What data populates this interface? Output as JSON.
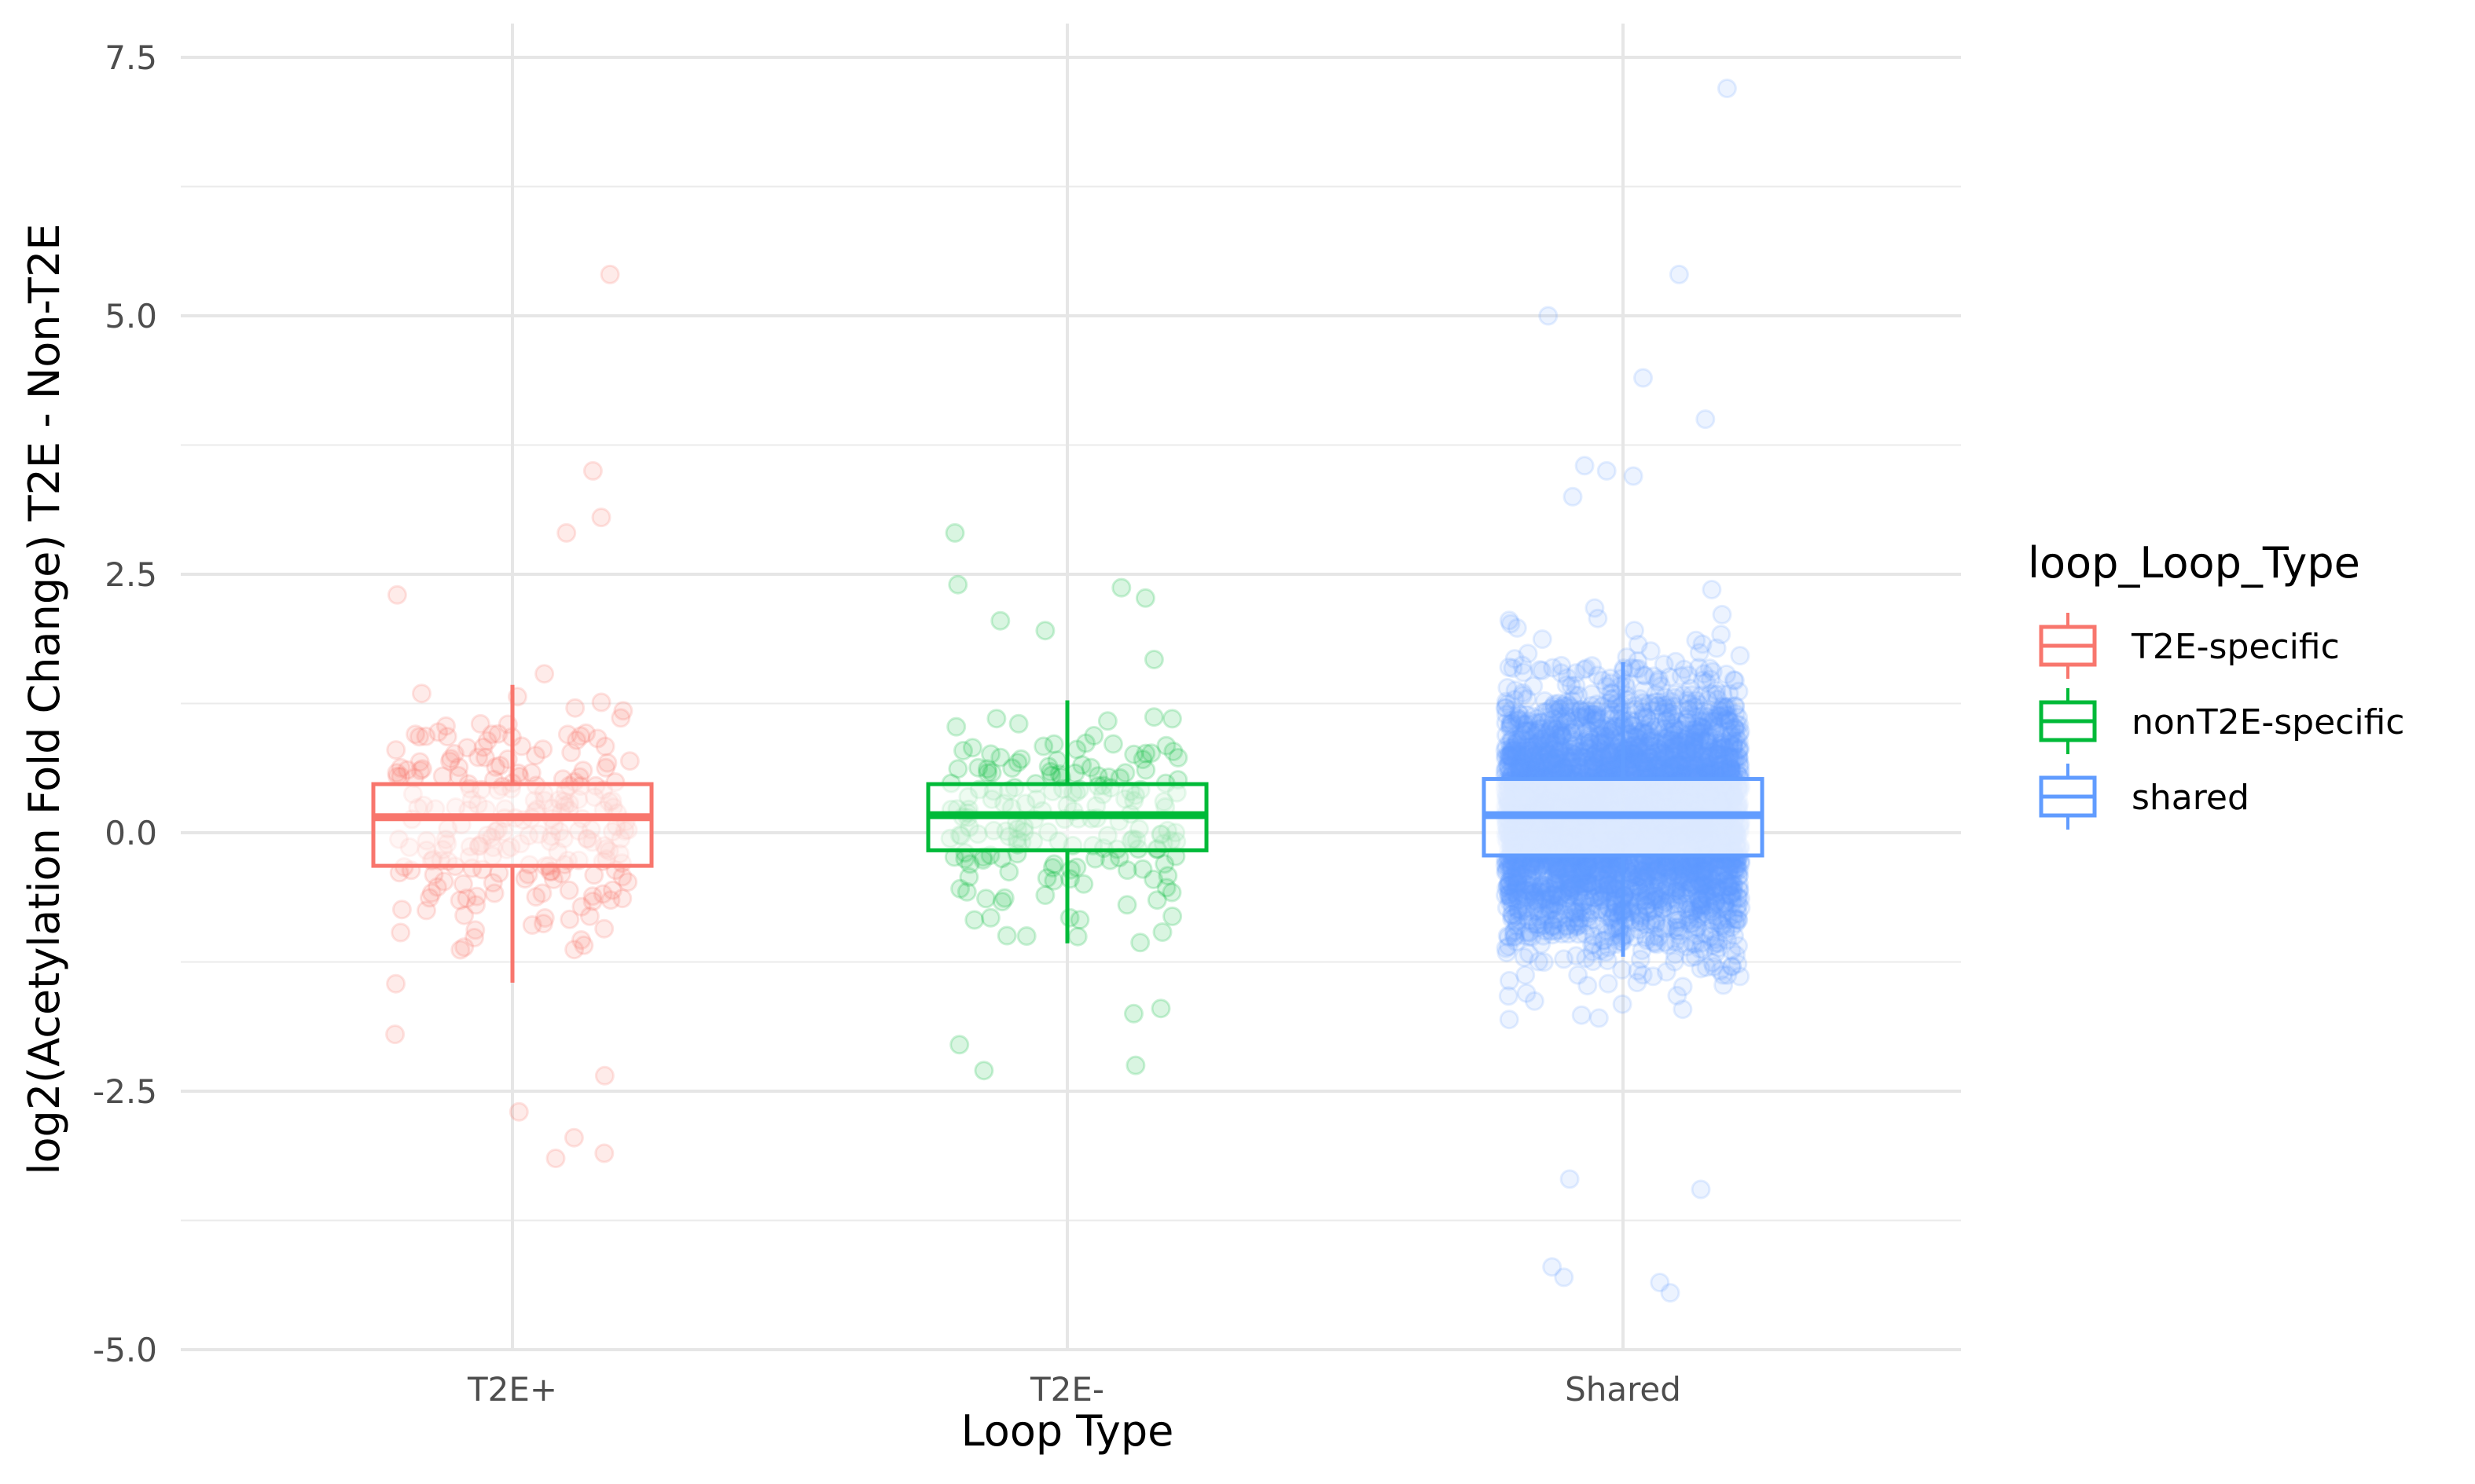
{
  "chart_data": {
    "type": "box",
    "title": "",
    "xlabel": "Loop Type",
    "ylabel": "log2(Acetylation Fold Change) T2E - Non-T2E",
    "ylim": [
      -5.0,
      7.8
    ],
    "y_ticks": [
      "-5.0",
      "-2.5",
      "0.0",
      "2.5",
      "5.0",
      "7.5"
    ],
    "categories": [
      "T2E+",
      "T2E-",
      "Shared"
    ],
    "grid": true,
    "legend": {
      "title": "loop_Loop_Type",
      "placement": "right",
      "entries": [
        "T2E-specific",
        "nonT2E-specific",
        "shared"
      ]
    },
    "series": [
      {
        "name": "T2E-specific",
        "category": "T2E+",
        "color": "#F8766D",
        "box": {
          "whisker_low": -1.45,
          "q1": -0.32,
          "median": 0.15,
          "q3": 0.47,
          "whisker_high": 1.43
        },
        "n_points": 230,
        "outliers": [
          5.4,
          3.5,
          3.05,
          2.9,
          -2.7,
          -3.1,
          -3.15,
          -2.95,
          -2.35,
          2.3,
          -1.95
        ],
        "point_alpha": 0.15
      },
      {
        "name": "nonT2E-specific",
        "category": "T2E-",
        "color": "#00BA38",
        "box": {
          "whisker_low": -1.07,
          "q1": -0.17,
          "median": 0.17,
          "q3": 0.47,
          "whisker_high": 1.28
        },
        "n_points": 180,
        "outliers": [
          2.9,
          2.4,
          2.37,
          2.27,
          2.05,
          -1.7,
          -1.75,
          -2.05,
          -2.25,
          -2.3
        ],
        "point_alpha": 0.15
      },
      {
        "name": "shared",
        "category": "Shared",
        "color": "#619CFF",
        "box": {
          "whisker_low": -1.2,
          "q1": -0.22,
          "median": 0.17,
          "q3": 0.52,
          "whisker_high": 1.65
        },
        "n_points": 4500,
        "outliers": [
          7.2,
          5.4,
          5.0,
          4.4,
          4.0,
          3.55,
          3.5,
          3.45,
          3.25,
          -4.2,
          -4.3,
          -4.35,
          -4.45,
          -3.45,
          -3.35
        ],
        "point_alpha": 0.12
      }
    ]
  }
}
